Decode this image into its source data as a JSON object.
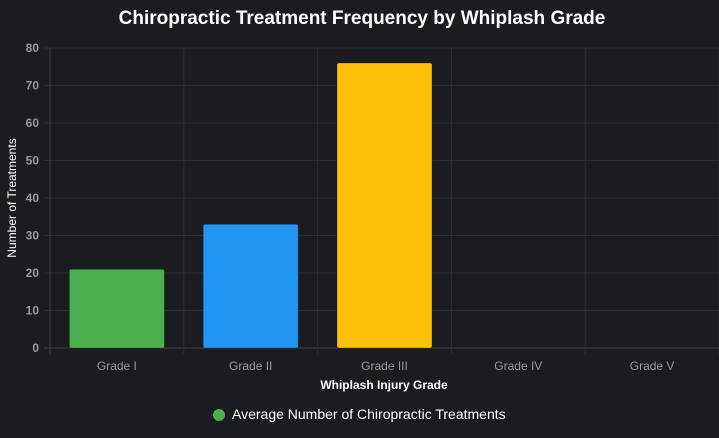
{
  "chart_data": {
    "type": "bar",
    "title": "Chiropractic Treatment Frequency by Whiplash Grade",
    "xlabel": "Whiplash Injury Grade",
    "ylabel": "Number of Treatments",
    "categories": [
      "Grade I",
      "Grade II",
      "Grade III",
      "Grade IV",
      "Grade V"
    ],
    "series": [
      {
        "name": "Average Number of Chiropractic Treatments",
        "values": [
          21,
          33,
          76,
          0,
          0
        ],
        "colors": [
          "#4caf50",
          "#2196f3",
          "#ffc107",
          "#ff5722",
          "#9c27b0"
        ],
        "legend_color": "#4caf50"
      }
    ],
    "ylim": [
      0,
      80
    ],
    "yticks": [
      0,
      10,
      20,
      30,
      40,
      50,
      60,
      70,
      80
    ],
    "grid": true,
    "legend_position": "bottom"
  },
  "theme": {
    "background": "#1b1c20",
    "grid_color": "#2c2d31",
    "axis_color": "#3a3b40",
    "tick_label_color": "#9a9a9a",
    "title_color": "#ffffff",
    "axis_title_color": "#ffffff",
    "legend_text_color": "#ffffff"
  }
}
